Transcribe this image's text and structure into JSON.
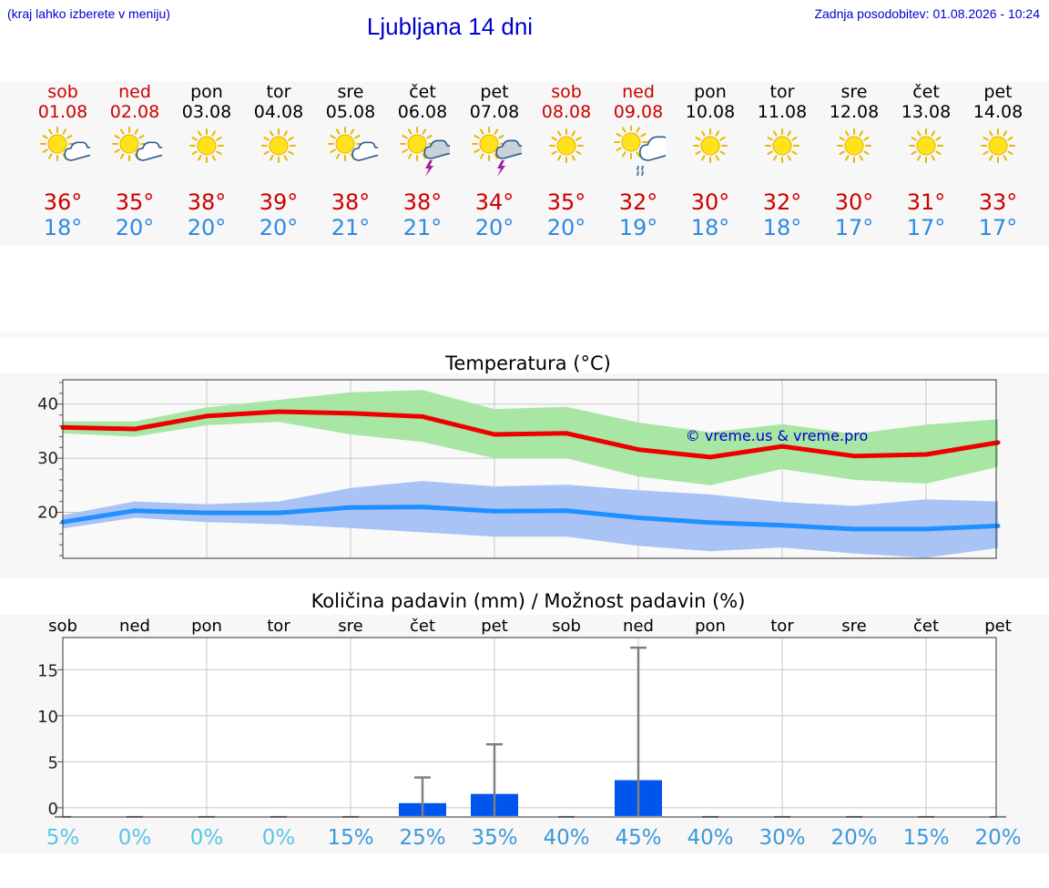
{
  "header": {
    "hint": "(kraj lahko izberete v meniju)",
    "title": "Ljubljana 14 dni",
    "updated": "Zadnja posodobitev: 01.08.2026 - 10:24"
  },
  "days": [
    {
      "name": "sob",
      "date": "01.08",
      "weekend": true,
      "icon": "sun-cloud-icon",
      "tmax": "36°",
      "tmin": "18°"
    },
    {
      "name": "ned",
      "date": "02.08",
      "weekend": true,
      "icon": "sun-cloud-icon",
      "tmax": "35°",
      "tmin": "20°"
    },
    {
      "name": "pon",
      "date": "03.08",
      "weekend": false,
      "icon": "sun-icon",
      "tmax": "38°",
      "tmin": "20°"
    },
    {
      "name": "tor",
      "date": "04.08",
      "weekend": false,
      "icon": "sun-icon",
      "tmax": "39°",
      "tmin": "20°"
    },
    {
      "name": "sre",
      "date": "05.08",
      "weekend": false,
      "icon": "sun-cloud-icon",
      "tmax": "38°",
      "tmin": "21°"
    },
    {
      "name": "čet",
      "date": "06.08",
      "weekend": false,
      "icon": "sun-thunderstorm-icon",
      "tmax": "38°",
      "tmin": "21°"
    },
    {
      "name": "pet",
      "date": "07.08",
      "weekend": false,
      "icon": "sun-thunderstorm-icon",
      "tmax": "34°",
      "tmin": "20°"
    },
    {
      "name": "sob",
      "date": "08.08",
      "weekend": true,
      "icon": "sun-icon",
      "tmax": "35°",
      "tmin": "20°"
    },
    {
      "name": "ned",
      "date": "09.08",
      "weekend": true,
      "icon": "sun-cloud-rain-icon",
      "tmax": "32°",
      "tmin": "19°"
    },
    {
      "name": "pon",
      "date": "10.08",
      "weekend": false,
      "icon": "sun-icon",
      "tmax": "30°",
      "tmin": "18°"
    },
    {
      "name": "tor",
      "date": "11.08",
      "weekend": false,
      "icon": "sun-icon",
      "tmax": "32°",
      "tmin": "18°"
    },
    {
      "name": "sre",
      "date": "12.08",
      "weekend": false,
      "icon": "sun-icon",
      "tmax": "30°",
      "tmin": "17°"
    },
    {
      "name": "čet",
      "date": "13.08",
      "weekend": false,
      "icon": "sun-icon",
      "tmax": "31°",
      "tmin": "17°"
    },
    {
      "name": "pet",
      "date": "14.08",
      "weekend": false,
      "icon": "sun-icon",
      "tmax": "33°",
      "tmin": "17°"
    }
  ],
  "colors": {
    "weekend": "#cc0000",
    "tmax_line": "#ee0000",
    "tmax_band": "#a8e6a3",
    "tmin_line": "#1e90ff",
    "tmin_band": "#a9c3f5",
    "precip_bar": "#0055ee",
    "precip_whisker": "#808080",
    "watermark": "#0000cc"
  },
  "chart_data": [
    {
      "type": "line",
      "title": "Temperatura (°C)",
      "watermark": "© vreme.us & vreme.pro",
      "x": [
        "sob",
        "ned",
        "pon",
        "tor",
        "sre",
        "čet",
        "pet",
        "sob",
        "ned",
        "pon",
        "tor",
        "sre",
        "čet",
        "pet"
      ],
      "ylim": [
        11.5,
        44.5
      ],
      "yticks": [
        20,
        30,
        40
      ],
      "grid": true,
      "series": [
        {
          "key": "tmax",
          "values": [
            35.7,
            35.4,
            37.8,
            38.6,
            38.3,
            37.7,
            34.4,
            34.6,
            31.6,
            30.2,
            32.2,
            30.4,
            30.7,
            32.9
          ],
          "band_high": [
            36.8,
            36.8,
            39.4,
            40.8,
            42.2,
            42.6,
            39.1,
            39.5,
            36.6,
            34.8,
            36.3,
            34.5,
            36.2,
            37.2
          ],
          "band_low": [
            34.6,
            34.0,
            36.1,
            36.7,
            34.4,
            33.0,
            30.0,
            30.0,
            26.6,
            25.0,
            28.0,
            26.0,
            25.3,
            28.4
          ]
        },
        {
          "key": "tmin",
          "values": [
            18.2,
            20.3,
            19.9,
            19.9,
            20.9,
            21.0,
            20.2,
            20.3,
            19.0,
            18.1,
            17.6,
            16.9,
            16.9,
            17.5
          ],
          "band_high": [
            19.5,
            22.0,
            21.5,
            22.0,
            24.5,
            25.8,
            24.8,
            25.1,
            24.1,
            23.3,
            21.9,
            21.2,
            22.4,
            22.0
          ],
          "band_low": [
            17.0,
            19.0,
            18.2,
            17.8,
            17.1,
            16.3,
            15.5,
            15.5,
            13.8,
            12.8,
            13.5,
            12.4,
            11.6,
            13.4
          ]
        }
      ]
    },
    {
      "type": "bar",
      "title": "Količina padavin (mm) / Možnost padavin (%)",
      "categories": [
        "sob",
        "ned",
        "pon",
        "tor",
        "sre",
        "čet",
        "pet",
        "sob",
        "ned",
        "pon",
        "tor",
        "sre",
        "čet",
        "pet"
      ],
      "ylim": [
        -1,
        18.5
      ],
      "yticks": [
        0,
        5,
        10,
        15
      ],
      "grid": true,
      "values": [
        0,
        0,
        0,
        0,
        0,
        0.5,
        1.5,
        0,
        3.0,
        0,
        0,
        0,
        0,
        0
      ],
      "whisker_max": [
        0,
        0,
        0,
        0,
        0,
        3.3,
        6.9,
        0,
        17.4,
        0,
        0,
        0,
        0,
        0
      ],
      "probability": [
        "5%",
        "0%",
        "0%",
        "0%",
        "15%",
        "25%",
        "35%",
        "40%",
        "45%",
        "40%",
        "30%",
        "20%",
        "15%",
        "20%"
      ],
      "probability_colors": [
        "#56c6e8",
        "#56c6e8",
        "#56c6e8",
        "#56c6e8",
        "#3a9ad9",
        "#3a9ad9",
        "#3a9ad9",
        "#3a9ad9",
        "#3a9ad9",
        "#3a9ad9",
        "#3a9ad9",
        "#3a9ad9",
        "#3a9ad9",
        "#3a9ad9"
      ]
    }
  ]
}
